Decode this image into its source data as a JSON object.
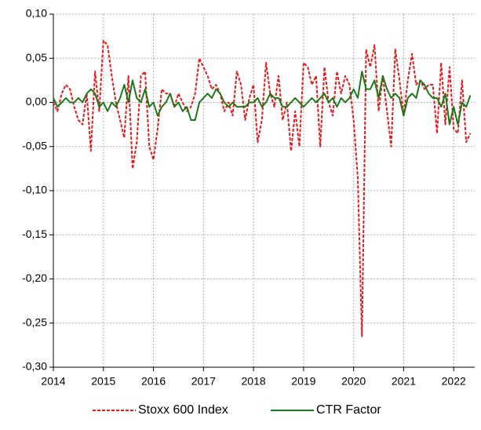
{
  "chart_data": {
    "type": "line",
    "x": [
      2014,
      2014.083,
      2014.167,
      2014.25,
      2014.333,
      2014.417,
      2014.5,
      2014.583,
      2014.667,
      2014.75,
      2014.833,
      2014.917,
      2015,
      2015.083,
      2015.167,
      2015.25,
      2015.333,
      2015.417,
      2015.5,
      2015.583,
      2015.667,
      2015.75,
      2015.833,
      2015.917,
      2016,
      2016.083,
      2016.167,
      2016.25,
      2016.333,
      2016.417,
      2016.5,
      2016.583,
      2016.667,
      2016.75,
      2016.833,
      2016.917,
      2017,
      2017.083,
      2017.167,
      2017.25,
      2017.333,
      2017.417,
      2017.5,
      2017.583,
      2017.667,
      2017.75,
      2017.833,
      2017.917,
      2018,
      2018.083,
      2018.167,
      2018.25,
      2018.333,
      2018.417,
      2018.5,
      2018.583,
      2018.667,
      2018.75,
      2018.833,
      2018.917,
      2019,
      2019.083,
      2019.167,
      2019.25,
      2019.333,
      2019.417,
      2019.5,
      2019.583,
      2019.667,
      2019.75,
      2019.833,
      2019.917,
      2020,
      2020.083,
      2020.167,
      2020.25,
      2020.333,
      2020.417,
      2020.5,
      2020.583,
      2020.667,
      2020.75,
      2020.833,
      2020.917,
      2021,
      2021.083,
      2021.167,
      2021.25,
      2021.333,
      2021.417,
      2021.5,
      2021.583,
      2021.667,
      2021.75,
      2021.833,
      2021.917,
      2022,
      2022.083,
      2022.167,
      2022.25,
      2022.333
    ],
    "series": [
      {
        "name": "Stoxx 600 Index",
        "color": "#e8191c",
        "dashed": true,
        "values": [
          0.0,
          -0.01,
          0.01,
          0.02,
          0.015,
          -0.005,
          -0.02,
          -0.025,
          0.01,
          -0.055,
          0.035,
          -0.01,
          0.07,
          0.065,
          0.03,
          0.0,
          -0.02,
          -0.04,
          0.03,
          -0.075,
          -0.045,
          0.03,
          0.035,
          -0.05,
          -0.065,
          -0.03,
          0.015,
          0.01,
          0.01,
          -0.005,
          0.01,
          0.0,
          -0.01,
          -0.005,
          0.01,
          0.05,
          0.04,
          0.03,
          0.015,
          0.02,
          0.01,
          -0.01,
          0.0,
          -0.015,
          0.035,
          0.02,
          -0.02,
          0.005,
          0.02,
          -0.045,
          -0.02,
          0.045,
          0.01,
          -0.005,
          0.03,
          -0.02,
          0.0,
          -0.055,
          -0.01,
          -0.05,
          0.045,
          0.04,
          0.02,
          0.03,
          -0.05,
          0.04,
          0.0,
          -0.015,
          0.035,
          0.01,
          0.03,
          0.02,
          -0.02,
          -0.085,
          -0.265,
          0.06,
          0.04,
          0.065,
          -0.01,
          0.03,
          -0.01,
          -0.05,
          0.06,
          0.025,
          -0.015,
          0.025,
          0.055,
          0.02,
          0.025,
          0.015,
          0.02,
          0.02,
          -0.035,
          0.045,
          -0.025,
          0.04,
          -0.03,
          -0.035,
          0.025,
          -0.045,
          -0.035
        ]
      },
      {
        "name": "CTR Factor",
        "color": "#1a7a1a",
        "dashed": false,
        "values": [
          0.005,
          -0.005,
          0.0,
          0.005,
          0.0,
          0.0,
          0.005,
          0.0,
          0.01,
          0.015,
          0.01,
          -0.005,
          0.0,
          -0.01,
          0.0,
          -0.005,
          0.005,
          0.02,
          0.0,
          0.025,
          0.005,
          0.0,
          0.015,
          -0.005,
          0.0,
          -0.015,
          -0.005,
          0.0,
          0.01,
          -0.005,
          0.0,
          -0.01,
          -0.005,
          -0.02,
          -0.02,
          0.0,
          0.005,
          0.01,
          0.005,
          0.015,
          0.01,
          0.0,
          -0.005,
          0.0,
          -0.005,
          -0.005,
          -0.005,
          0.0,
          0.0,
          0.005,
          -0.005,
          0.0,
          0.01,
          0.005,
          0.005,
          -0.005,
          -0.005,
          0.0,
          0.005,
          0.0,
          -0.005,
          0.0,
          0.005,
          0.0,
          0.005,
          0.01,
          0.0,
          0.005,
          -0.005,
          0.005,
          0.0,
          0.005,
          0.015,
          0.005,
          0.035,
          0.015,
          0.015,
          0.025,
          0.005,
          0.03,
          0.015,
          0.005,
          0.01,
          0.005,
          -0.015,
          0.005,
          0.01,
          0.005,
          0.025,
          0.02,
          0.01,
          0.005,
          0.005,
          -0.005,
          0.01,
          -0.025,
          -0.005,
          -0.025,
          0.0,
          -0.005,
          0.008
        ]
      }
    ],
    "xlim": [
      2014,
      2022.42
    ],
    "xticks": [
      2014,
      2015,
      2016,
      2017,
      2018,
      2019,
      2020,
      2021,
      2022
    ],
    "ylim": [
      -0.3,
      0.1
    ],
    "yticks": [
      {
        "value": -0.3,
        "label": "-0,30"
      },
      {
        "value": -0.25,
        "label": "-0,25"
      },
      {
        "value": -0.2,
        "label": "-0,20"
      },
      {
        "value": -0.15,
        "label": "-0,15"
      },
      {
        "value": -0.1,
        "label": "-0,10"
      },
      {
        "value": -0.05,
        "label": "-0,05"
      },
      {
        "value": 0,
        "label": "0,00"
      },
      {
        "value": 0.05,
        "label": "0,05"
      },
      {
        "value": 0.1,
        "label": "0,10"
      }
    ],
    "grid": true,
    "legend": "bottom"
  }
}
